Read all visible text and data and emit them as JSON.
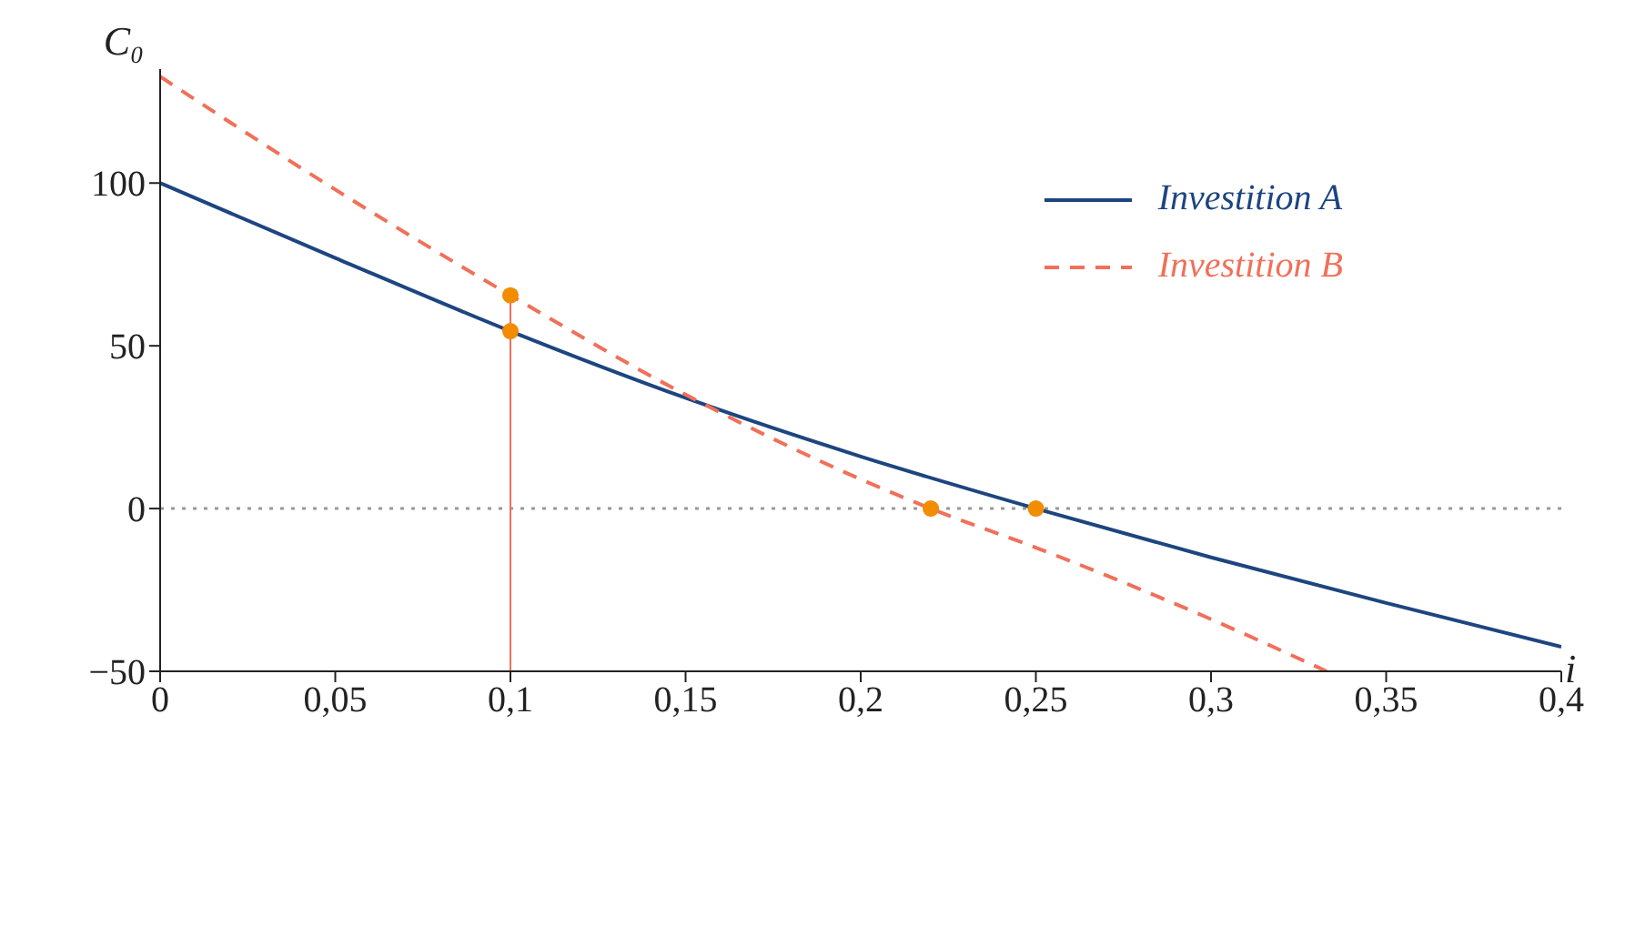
{
  "chart_data": {
    "type": "line",
    "xlabel": "i",
    "ylabel": "C₀",
    "xlim": [
      0,
      0.4
    ],
    "ylim": [
      -50,
      135
    ],
    "xticks": [
      0,
      {
        "value": 0.05,
        "label": "0,05"
      },
      {
        "value": 0.1,
        "label": "0,1"
      },
      {
        "value": 0.15,
        "label": "0,15"
      },
      {
        "value": 0.2,
        "label": "0,2"
      },
      {
        "value": 0.25,
        "label": "0,25"
      },
      {
        "value": 0.3,
        "label": "0,3"
      },
      {
        "value": 0.35,
        "label": "0,35"
      },
      {
        "value": 0.4,
        "label": "0,4"
      }
    ],
    "yticks": [
      -50,
      0,
      50,
      100
    ],
    "legend": "top right",
    "marker": "none",
    "series": [
      {
        "name": "Investition A",
        "color": "#1d4580",
        "line_style": "solid",
        "x": [
          0,
          0.05,
          0.1,
          0.15,
          0.2,
          0.25,
          0.3,
          0.35,
          0.4
        ],
        "values": [
          100,
          77,
          54.5,
          34,
          16,
          0,
          -15,
          -29,
          -42.5
        ]
      },
      {
        "name": "Investition B",
        "color": "#f0705a",
        "line_style": "dashed",
        "x": [
          0,
          0.05,
          0.1,
          0.15,
          0.2,
          0.22,
          0.25,
          0.3,
          0.333
        ],
        "values": [
          132.7,
          98,
          65.5,
          35,
          9,
          0,
          -12,
          -34,
          -50
        ]
      },
      {
        "type": "line",
        "color": "#f0705a",
        "line_style": "solid",
        "x": [
          0.1,
          0.1
        ],
        "values": [
          -50,
          65.5
        ]
      },
      {
        "type": "scatter",
        "color": "#f28c00",
        "marker": "circle",
        "x": [
          0.1,
          0.1,
          0.22,
          0.25
        ],
        "values": [
          54.5,
          65.5,
          0,
          0
        ]
      }
    ],
    "ref_lines": [
      {
        "axis": "y",
        "value": 0,
        "color": "#999999",
        "line_style": "dotted"
      }
    ]
  }
}
